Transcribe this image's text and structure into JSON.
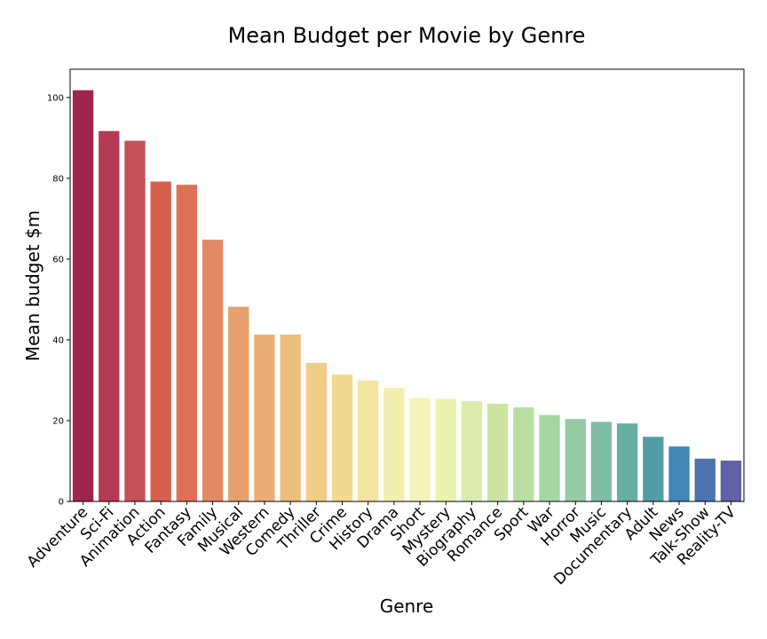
{
  "chart_data": {
    "type": "bar",
    "title": "Mean Budget per Movie by Genre",
    "xlabel": "Genre",
    "ylabel": "Mean budget $m",
    "ylim": [
      0,
      107
    ],
    "yticks": [
      0,
      20,
      40,
      60,
      80,
      100
    ],
    "grid": false,
    "categories": [
      "Adventure",
      "Sci-Fi",
      "Animation",
      "Action",
      "Fantasy",
      "Family",
      "Musical",
      "Western",
      "Comedy",
      "Thriller",
      "Crime",
      "History",
      "Drama",
      "Short",
      "Mystery",
      "Biography",
      "Romance",
      "Sport",
      "War",
      "Horror",
      "Music",
      "Documentary",
      "Adult",
      "News",
      "Talk-Show",
      "Reality-TV"
    ],
    "values": [
      101.8,
      91.7,
      89.3,
      79.2,
      78.4,
      64.8,
      48.2,
      41.3,
      41.3,
      34.3,
      31.4,
      29.9,
      28.1,
      25.6,
      25.4,
      24.8,
      24.2,
      23.3,
      21.4,
      20.4,
      19.7,
      19.3,
      16.0,
      13.6,
      10.6,
      10.1
    ],
    "colors": [
      "#a0254c",
      "#b53a54",
      "#c85059",
      "#d5604e",
      "#de7057",
      "#e28a63",
      "#e6a06b",
      "#eaae74",
      "#ecbf7d",
      "#efcd86",
      "#f2d990",
      "#f3e4a0",
      "#f4efae",
      "#f3f4b9",
      "#eaf2ad",
      "#dcecaa",
      "#cce5a3",
      "#b9dea3",
      "#a8d6a3",
      "#96cba4",
      "#7ebea5",
      "#67b0a1",
      "#529ca8",
      "#4186b4",
      "#4c73ad",
      "#5f62a5"
    ]
  }
}
